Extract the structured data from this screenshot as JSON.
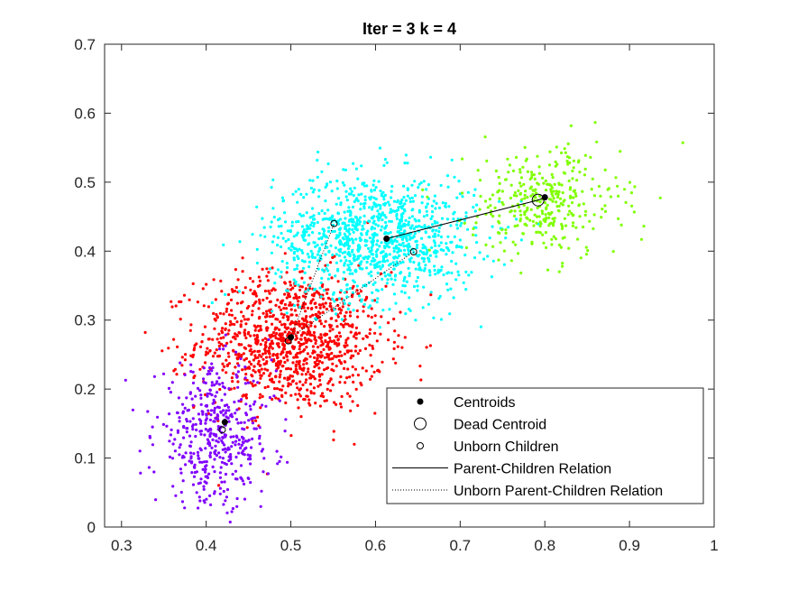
{
  "chart_data": {
    "type": "scatter",
    "title": "Iter = 3  k = 4",
    "xlabel": "",
    "ylabel": "",
    "xlim": [
      0.28,
      1.0
    ],
    "ylim": [
      0,
      0.7
    ],
    "xticks": [
      "0.3",
      "0.4",
      "0.5",
      "0.6",
      "0.7",
      "0.8",
      "0.9",
      "1"
    ],
    "yticks": [
      "0",
      "0.1",
      "0.2",
      "0.3",
      "0.4",
      "0.5",
      "0.6",
      "0.7"
    ],
    "grid": false,
    "legend_position": "bottom-right",
    "clusters": [
      {
        "color": "#ff0000",
        "center": [
          0.5,
          0.27
        ],
        "spread": [
          0.055,
          0.05
        ],
        "count": 1100
      },
      {
        "color": "#00ffff",
        "center": [
          0.6,
          0.42
        ],
        "spread": [
          0.06,
          0.045
        ],
        "count": 1100
      },
      {
        "color": "#80ff00",
        "center": [
          0.8,
          0.47
        ],
        "spread": [
          0.045,
          0.04
        ],
        "count": 350
      },
      {
        "color": "#8000ff",
        "center": [
          0.41,
          0.13
        ],
        "spread": [
          0.035,
          0.05
        ],
        "count": 450
      }
    ],
    "centroids": [
      {
        "x": 0.422,
        "y": 0.152
      },
      {
        "x": 0.5,
        "y": 0.275
      },
      {
        "x": 0.613,
        "y": 0.418
      },
      {
        "x": 0.8,
        "y": 0.478
      }
    ],
    "dead_centroids": [
      {
        "x": 0.792,
        "y": 0.474
      }
    ],
    "unborn_children": [
      {
        "x": 0.419,
        "y": 0.141
      },
      {
        "x": 0.497,
        "y": 0.27
      },
      {
        "x": 0.551,
        "y": 0.44
      },
      {
        "x": 0.645,
        "y": 0.399
      }
    ],
    "parent_children_relations": [
      {
        "from": [
          0.613,
          0.418
        ],
        "to": [
          0.792,
          0.474
        ]
      },
      {
        "from": [
          0.792,
          0.474
        ],
        "to": [
          0.8,
          0.478
        ]
      }
    ],
    "unborn_relations": [
      {
        "from": [
          0.422,
          0.152
        ],
        "to": [
          0.419,
          0.141
        ]
      },
      {
        "from": [
          0.5,
          0.275
        ],
        "to": [
          0.551,
          0.44
        ]
      },
      {
        "from": [
          0.5,
          0.275
        ],
        "to": [
          0.645,
          0.399
        ]
      }
    ],
    "legend": [
      {
        "label": "Centroids",
        "marker": "filled-dot"
      },
      {
        "label": "Dead Centroid",
        "marker": "large-open-circle"
      },
      {
        "label": "Unborn Children",
        "marker": "small-open-circle"
      },
      {
        "label": "Parent-Children Relation",
        "marker": "solid-line"
      },
      {
        "label": "Unborn Parent-Children Relation",
        "marker": "dotted-line"
      }
    ]
  }
}
